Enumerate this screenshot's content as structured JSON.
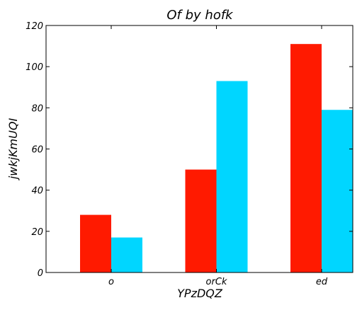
{
  "chart_data": {
    "type": "bar",
    "title": "Of by hofk",
    "xlabel": "YPzDQZ",
    "ylabel": "jwkjKmUQI",
    "categories": [
      "o",
      "orCk",
      "ed"
    ],
    "series": [
      {
        "values": [
          28,
          50,
          111
        ],
        "color": "#ff1a00"
      },
      {
        "values": [
          17,
          93,
          79
        ],
        "color": "#00d6ff"
      }
    ],
    "ylim": [
      0,
      120
    ],
    "yticks": [
      0,
      20,
      40,
      60,
      80,
      100,
      120
    ],
    "grid": false
  }
}
